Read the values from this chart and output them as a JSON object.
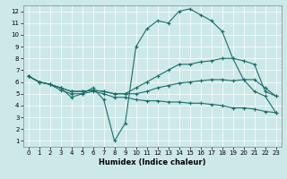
{
  "xlabel": "Humidex (Indice chaleur)",
  "background_color": "#cde8e8",
  "line_color": "#1a6e6a",
  "xlim": [
    -0.5,
    23.5
  ],
  "ylim": [
    0.5,
    12.5
  ],
  "xticks": [
    0,
    1,
    2,
    3,
    4,
    5,
    6,
    7,
    8,
    9,
    10,
    11,
    12,
    13,
    14,
    15,
    16,
    17,
    18,
    19,
    20,
    21,
    22,
    23
  ],
  "yticks": [
    1,
    2,
    3,
    4,
    5,
    6,
    7,
    8,
    9,
    10,
    11,
    12
  ],
  "lines": [
    {
      "x": [
        0,
        1,
        2,
        3,
        4,
        5,
        6,
        7,
        8,
        9,
        10,
        11,
        12,
        13,
        14,
        15,
        16,
        17,
        18,
        19,
        20,
        21,
        22,
        23
      ],
      "y": [
        6.5,
        6.0,
        5.8,
        5.5,
        4.7,
        5.0,
        5.5,
        4.5,
        1.0,
        2.5,
        9.0,
        10.5,
        11.2,
        11.0,
        12.0,
        12.2,
        11.7,
        11.2,
        10.3,
        8.0,
        6.2,
        5.2,
        4.8,
        3.4
      ]
    },
    {
      "x": [
        0,
        1,
        2,
        3,
        4,
        5,
        6,
        7,
        8,
        9,
        10,
        11,
        12,
        13,
        14,
        15,
        16,
        17,
        18,
        19,
        20,
        21,
        22,
        23
      ],
      "y": [
        6.5,
        6.0,
        5.8,
        5.5,
        5.2,
        5.2,
        5.3,
        5.2,
        5.0,
        5.0,
        5.5,
        6.0,
        6.5,
        7.0,
        7.5,
        7.5,
        7.7,
        7.8,
        8.0,
        8.0,
        7.8,
        7.5,
        5.2,
        4.8
      ]
    },
    {
      "x": [
        0,
        1,
        2,
        3,
        4,
        5,
        6,
        7,
        8,
        9,
        10,
        11,
        12,
        13,
        14,
        15,
        16,
        17,
        18,
        19,
        20,
        21,
        22,
        23
      ],
      "y": [
        6.5,
        6.0,
        5.8,
        5.5,
        5.2,
        5.2,
        5.3,
        5.2,
        5.0,
        5.0,
        5.0,
        5.2,
        5.5,
        5.7,
        5.9,
        6.0,
        6.1,
        6.2,
        6.2,
        6.1,
        6.2,
        6.2,
        5.5,
        4.8
      ]
    },
    {
      "x": [
        0,
        1,
        2,
        3,
        4,
        5,
        6,
        7,
        8,
        9,
        10,
        11,
        12,
        13,
        14,
        15,
        16,
        17,
        18,
        19,
        20,
        21,
        22,
        23
      ],
      "y": [
        6.5,
        6.0,
        5.8,
        5.3,
        5.0,
        5.0,
        5.2,
        5.0,
        4.7,
        4.7,
        4.5,
        4.4,
        4.4,
        4.3,
        4.3,
        4.2,
        4.2,
        4.1,
        4.0,
        3.8,
        3.8,
        3.7,
        3.5,
        3.4
      ]
    }
  ]
}
